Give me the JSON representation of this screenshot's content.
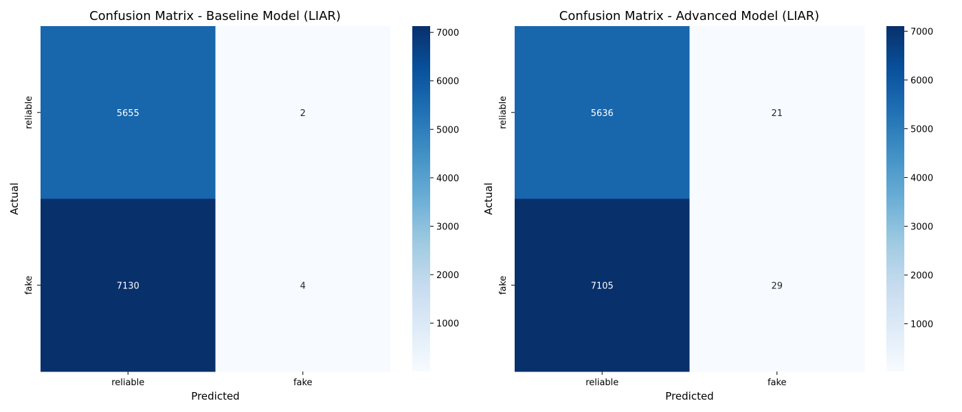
{
  "chart_data": [
    {
      "type": "heatmap",
      "title": "Confusion Matrix - Baseline Model (LIAR)",
      "xlabel": "Predicted",
      "ylabel": "Actual",
      "x_categories": [
        "reliable",
        "fake"
      ],
      "y_categories": [
        "reliable",
        "fake"
      ],
      "values": [
        [
          5655,
          2
        ],
        [
          7130,
          4
        ]
      ],
      "colormap": "Blues",
      "colorbar": {
        "range": [
          2,
          7130
        ],
        "ticks": [
          "1000",
          "2000",
          "3000",
          "4000",
          "5000",
          "6000",
          "7000"
        ]
      }
    },
    {
      "type": "heatmap",
      "title": "Confusion Matrix - Advanced Model (LIAR)",
      "xlabel": "Predicted",
      "ylabel": "Actual",
      "x_categories": [
        "reliable",
        "fake"
      ],
      "y_categories": [
        "reliable",
        "fake"
      ],
      "values": [
        [
          5636,
          21
        ],
        [
          7105,
          29
        ]
      ],
      "colormap": "Blues",
      "colorbar": {
        "range": [
          21,
          7105
        ],
        "ticks": [
          "1000",
          "2000",
          "3000",
          "4000",
          "5000",
          "6000",
          "7000"
        ]
      }
    }
  ]
}
